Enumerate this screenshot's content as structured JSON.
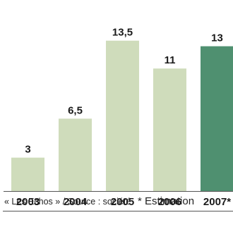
{
  "chart_data": {
    "type": "bar",
    "title": "",
    "xlabel": "",
    "ylabel": "",
    "categories": [
      "2003",
      "2004",
      "2005",
      "2006",
      "2007*"
    ],
    "values": [
      3,
      6.5,
      13.5,
      11,
      13
    ],
    "value_labels": [
      "3",
      "6,5",
      "13,5",
      "11",
      "13"
    ],
    "ylim": [
      0,
      15
    ],
    "grid": false,
    "colors": {
      "default_bar": "#cfdcbb",
      "highlight_bar": "#4f9070",
      "axis": "#555555",
      "text": "#1a1a1a"
    },
    "highlight_index": 4
  },
  "footer": {
    "source": "« Les Echos » / Source : société",
    "note": "* Estimation"
  }
}
